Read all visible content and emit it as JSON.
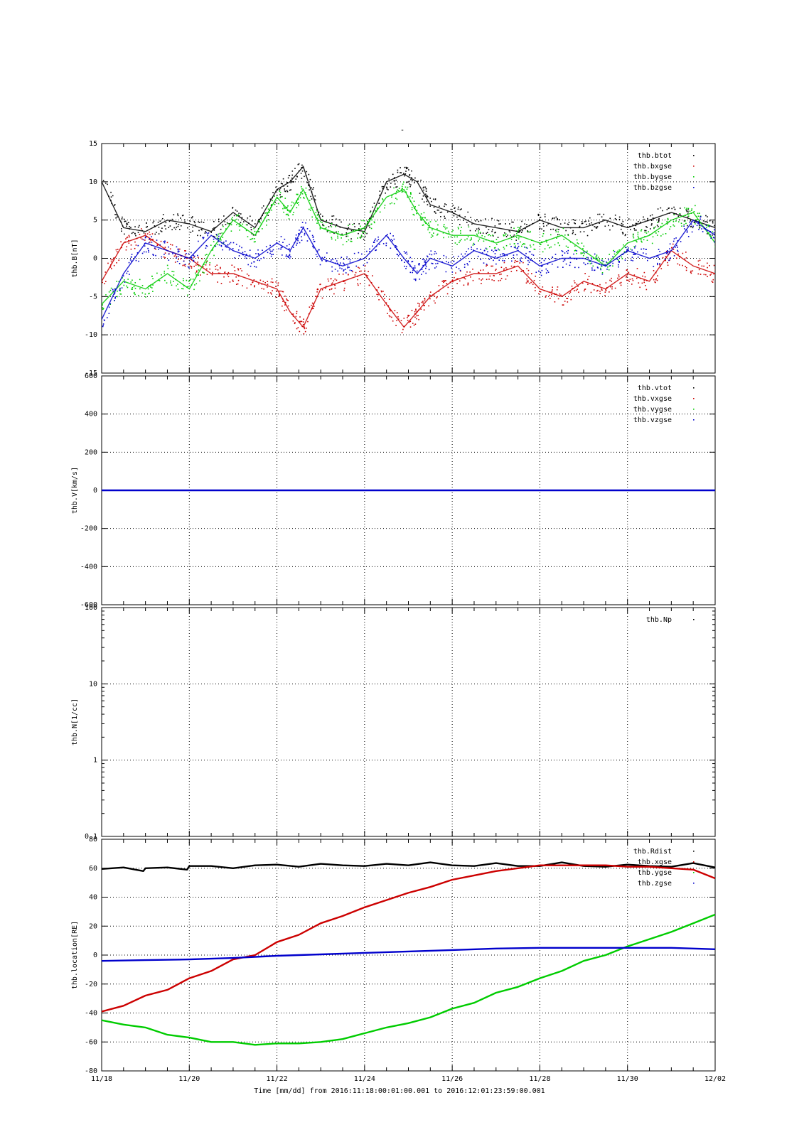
{
  "title": "-",
  "footer": {
    "xlabel": "Time [mm/dd]  from 2016:11:18:00:01:00.001  to  2016:12:01:23:59:00.001"
  },
  "x_tick_labels": [
    "11/18",
    "11/20",
    "11/22",
    "11/24",
    "11/26",
    "11/28",
    "11/30",
    "12/02"
  ],
  "colors": {
    "black": "#000000",
    "red": "#cc0000",
    "green": "#00cc00",
    "blue": "#0000cc"
  },
  "chart_data": [
    {
      "type": "scatter",
      "ylabel": "thb.B[nT]",
      "xlim": [
        0,
        14
      ],
      "ylim": [
        -15,
        15
      ],
      "yticks": [
        15,
        10,
        5,
        0,
        -5,
        -10,
        -15
      ],
      "legend": [
        "thb.btot",
        "thb.bxgse",
        "thb.bygse",
        "thb.bzgse"
      ],
      "legend_placement": "top-right",
      "grid": true,
      "series": [
        {
          "name": "thb.btot",
          "color": "#000000",
          "x": [
            0,
            0.5,
            1,
            1.5,
            2,
            2.5,
            3,
            3.5,
            4,
            4.3,
            4.6,
            5,
            5.5,
            6,
            6.5,
            6.9,
            7.2,
            7.5,
            8,
            8.5,
            9,
            9.5,
            10,
            10.5,
            11,
            11.5,
            12,
            12.5,
            13,
            13.5,
            14
          ],
          "y": [
            10,
            4,
            3.5,
            5,
            4.5,
            3.5,
            6,
            4,
            9,
            10,
            12,
            5,
            4,
            3.5,
            10,
            11,
            10,
            7,
            6,
            4.5,
            4,
            3.5,
            5,
            4,
            4,
            5,
            4,
            5,
            6,
            5,
            4
          ]
        },
        {
          "name": "thb.bxgse",
          "color": "#cc0000",
          "x": [
            0,
            0.5,
            1,
            1.5,
            2,
            2.5,
            3,
            3.5,
            4,
            4.3,
            4.6,
            5,
            5.5,
            6,
            6.5,
            6.9,
            7.2,
            7.5,
            8,
            8.5,
            9,
            9.5,
            10,
            10.5,
            11,
            11.5,
            12,
            12.5,
            13,
            13.5,
            14
          ],
          "y": [
            -3,
            2,
            3,
            1,
            0,
            -2,
            -2,
            -3,
            -4,
            -7,
            -9,
            -4,
            -3,
            -2,
            -6,
            -9,
            -7,
            -5,
            -3,
            -2,
            -2,
            -1,
            -4,
            -5,
            -3,
            -4,
            -2,
            -3,
            1,
            -1,
            -2
          ]
        },
        {
          "name": "thb.bygse",
          "color": "#00cc00",
          "x": [
            0,
            0.5,
            1,
            1.5,
            2,
            2.5,
            3,
            3.5,
            4,
            4.3,
            4.6,
            5,
            5.5,
            6,
            6.5,
            6.9,
            7.2,
            7.5,
            8,
            8.5,
            9,
            9.5,
            10,
            10.5,
            11,
            11.5,
            12,
            12.5,
            13,
            13.5,
            14
          ],
          "y": [
            -6,
            -3,
            -4,
            -2,
            -4,
            1,
            5,
            3,
            8,
            6,
            9,
            4,
            3,
            4,
            8,
            9,
            6,
            4,
            3,
            3,
            2,
            3,
            2,
            3,
            1,
            -1,
            2,
            3,
            5,
            6,
            2
          ]
        },
        {
          "name": "thb.bzgse",
          "color": "#0000cc",
          "x": [
            0,
            0.5,
            1,
            1.5,
            2,
            2.5,
            3,
            3.5,
            4,
            4.3,
            4.6,
            5,
            5.5,
            6,
            6.5,
            6.9,
            7.2,
            7.5,
            8,
            8.5,
            9,
            9.5,
            10,
            10.5,
            11,
            11.5,
            12,
            12.5,
            13,
            13.5,
            14
          ],
          "y": [
            -8,
            -2,
            2,
            1,
            0,
            3,
            1,
            0,
            2,
            1,
            4,
            0,
            -1,
            0,
            3,
            0,
            -2,
            0,
            -1,
            1,
            0,
            1,
            -1,
            0,
            0,
            -1,
            1,
            0,
            1,
            5,
            3
          ]
        }
      ]
    },
    {
      "type": "line",
      "ylabel": "thb.V[km/s]",
      "xlim": [
        0,
        14
      ],
      "ylim": [
        -600,
        600
      ],
      "yticks": [
        600,
        400,
        200,
        0,
        -200,
        -400,
        -600
      ],
      "legend": [
        "thb.vtot",
        "thb.vxgse",
        "thb.vygse",
        "thb.vzgse"
      ],
      "legend_placement": "top-right",
      "grid": true,
      "series": [
        {
          "name": "thb.vzgse",
          "color": "#0000cc",
          "x": [
            0,
            14
          ],
          "y": [
            0,
            0
          ]
        }
      ]
    },
    {
      "type": "line",
      "ylabel": "thb.N[1/cc]",
      "xlim": [
        0,
        14
      ],
      "yscale": "log",
      "ylim": [
        0.1,
        100
      ],
      "yticks": [
        100,
        10,
        1,
        0.1
      ],
      "ytick_labels": [
        "100",
        "10",
        "1",
        "0.1"
      ],
      "legend": [
        "thb.Np"
      ],
      "legend_placement": "top-right",
      "grid": true,
      "series": []
    },
    {
      "type": "line",
      "ylabel": "thb.location[RE]",
      "xlim": [
        0,
        14
      ],
      "ylim": [
        -80,
        80
      ],
      "yticks": [
        80,
        60,
        40,
        20,
        0,
        -20,
        -40,
        -60,
        -80
      ],
      "legend": [
        "thb.Rdist",
        "thb.xgse",
        "thb.ygse",
        "thb.zgse"
      ],
      "legend_placement": "top-right",
      "grid": true,
      "series": [
        {
          "name": "thb.Rdist",
          "color": "#000000",
          "x": [
            0,
            0.5,
            0.95,
            1,
            1.5,
            1.95,
            2,
            2.5,
            3,
            3.5,
            4,
            4.5,
            5,
            5.5,
            6,
            6.5,
            7,
            7.5,
            8,
            8.5,
            9,
            9.5,
            10,
            10.5,
            11,
            11.5,
            12,
            12.5,
            13,
            13.5,
            14
          ],
          "y": [
            59.5,
            60.5,
            58,
            60,
            60.5,
            59,
            61.5,
            61.5,
            60,
            62,
            62.5,
            61,
            63,
            62,
            61.5,
            63,
            62,
            64,
            62,
            61.5,
            63.5,
            61.5,
            61.5,
            64,
            61.5,
            61,
            62.5,
            61.5,
            61,
            63.5,
            60.5
          ]
        },
        {
          "name": "thb.xgse",
          "color": "#cc0000",
          "x": [
            0,
            0.5,
            1,
            1.5,
            2,
            2.5,
            3,
            3.5,
            4,
            4.5,
            5,
            5.5,
            6,
            6.5,
            7,
            7.5,
            8,
            8.5,
            9,
            9.5,
            10,
            10.5,
            11,
            11.5,
            12,
            12.5,
            13,
            13.5,
            14
          ],
          "y": [
            -39,
            -35,
            -28,
            -24,
            -16,
            -11,
            -3,
            0,
            9,
            14,
            22,
            27,
            33,
            38,
            43,
            47,
            52,
            55,
            58,
            60,
            62,
            62,
            62,
            62,
            61,
            61,
            60,
            59,
            53
          ]
        },
        {
          "name": "thb.ygse",
          "color": "#00cc00",
          "x": [
            0,
            0.5,
            1,
            1.5,
            2,
            2.5,
            3,
            3.5,
            4,
            4.5,
            5,
            5.5,
            6,
            6.5,
            7,
            7.5,
            8,
            8.5,
            9,
            9.5,
            10,
            10.5,
            11,
            11.5,
            12,
            12.5,
            13,
            13.5,
            14
          ],
          "y": [
            -45,
            -48,
            -50,
            -55,
            -57,
            -60,
            -60,
            -62,
            -61,
            -61,
            -60,
            -58,
            -54,
            -50,
            -47,
            -43,
            -37,
            -33,
            -26,
            -22,
            -16,
            -11,
            -4,
            0,
            6,
            11,
            16,
            22,
            28
          ]
        },
        {
          "name": "thb.zgse",
          "color": "#0000cc",
          "x": [
            0,
            1,
            2,
            3,
            4,
            5,
            6,
            7,
            8,
            9,
            10,
            11,
            12,
            13,
            14
          ],
          "y": [
            -4,
            -3.5,
            -3,
            -2,
            -0.5,
            0.5,
            1.5,
            2.5,
            3.5,
            4.5,
            5,
            5,
            5,
            5,
            4
          ]
        }
      ]
    }
  ]
}
